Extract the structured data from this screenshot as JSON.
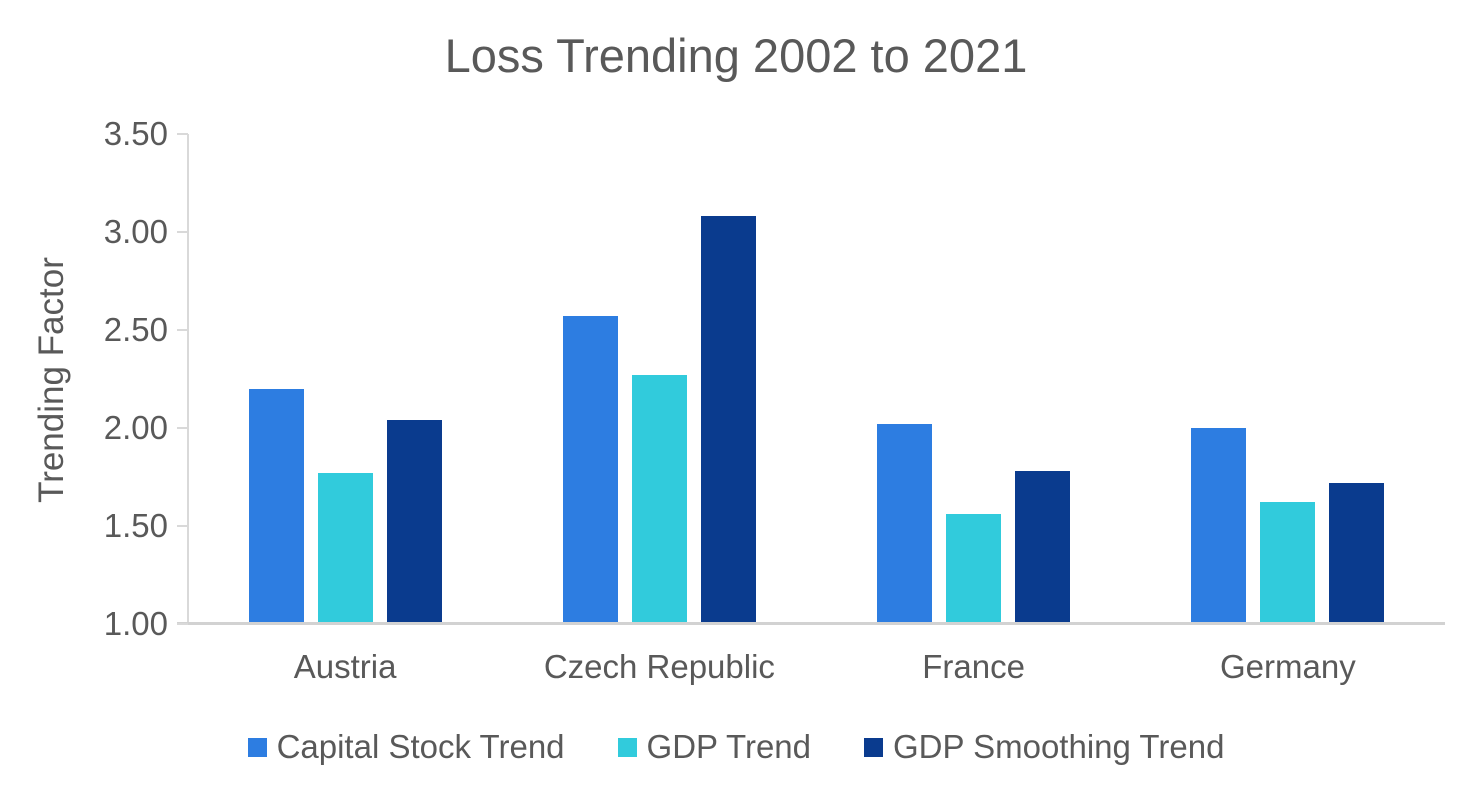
{
  "chart_data": {
    "type": "bar",
    "title": "Loss Trending 2002 to 2021",
    "xlabel": "",
    "ylabel": "Trending Factor",
    "categories": [
      "Austria",
      "Czech Republic",
      "France",
      "Germany"
    ],
    "series": [
      {
        "name": "Capital Stock Trend",
        "color": "#2D7DE1",
        "values": [
          2.2,
          2.57,
          2.02,
          2.0
        ]
      },
      {
        "name": "GDP Trend",
        "color": "#31CBDC",
        "values": [
          1.77,
          2.27,
          1.56,
          1.62
        ]
      },
      {
        "name": "GDP Smoothing Trend",
        "color": "#0A3B8E",
        "values": [
          2.04,
          3.08,
          1.78,
          1.72
        ]
      }
    ],
    "ylim": [
      1.0,
      3.5
    ],
    "yticks": [
      1.0,
      1.5,
      2.0,
      2.5,
      3.0,
      3.5
    ],
    "ytick_labels": [
      "1.00",
      "1.50",
      "2.00",
      "2.50",
      "3.00",
      "3.50"
    ],
    "grid": false,
    "legend_position": "bottom"
  },
  "colors": {
    "text": "#595959",
    "axis_line": "#d9d9d9",
    "baseline": "#d2d2d2",
    "background": "#ffffff"
  }
}
